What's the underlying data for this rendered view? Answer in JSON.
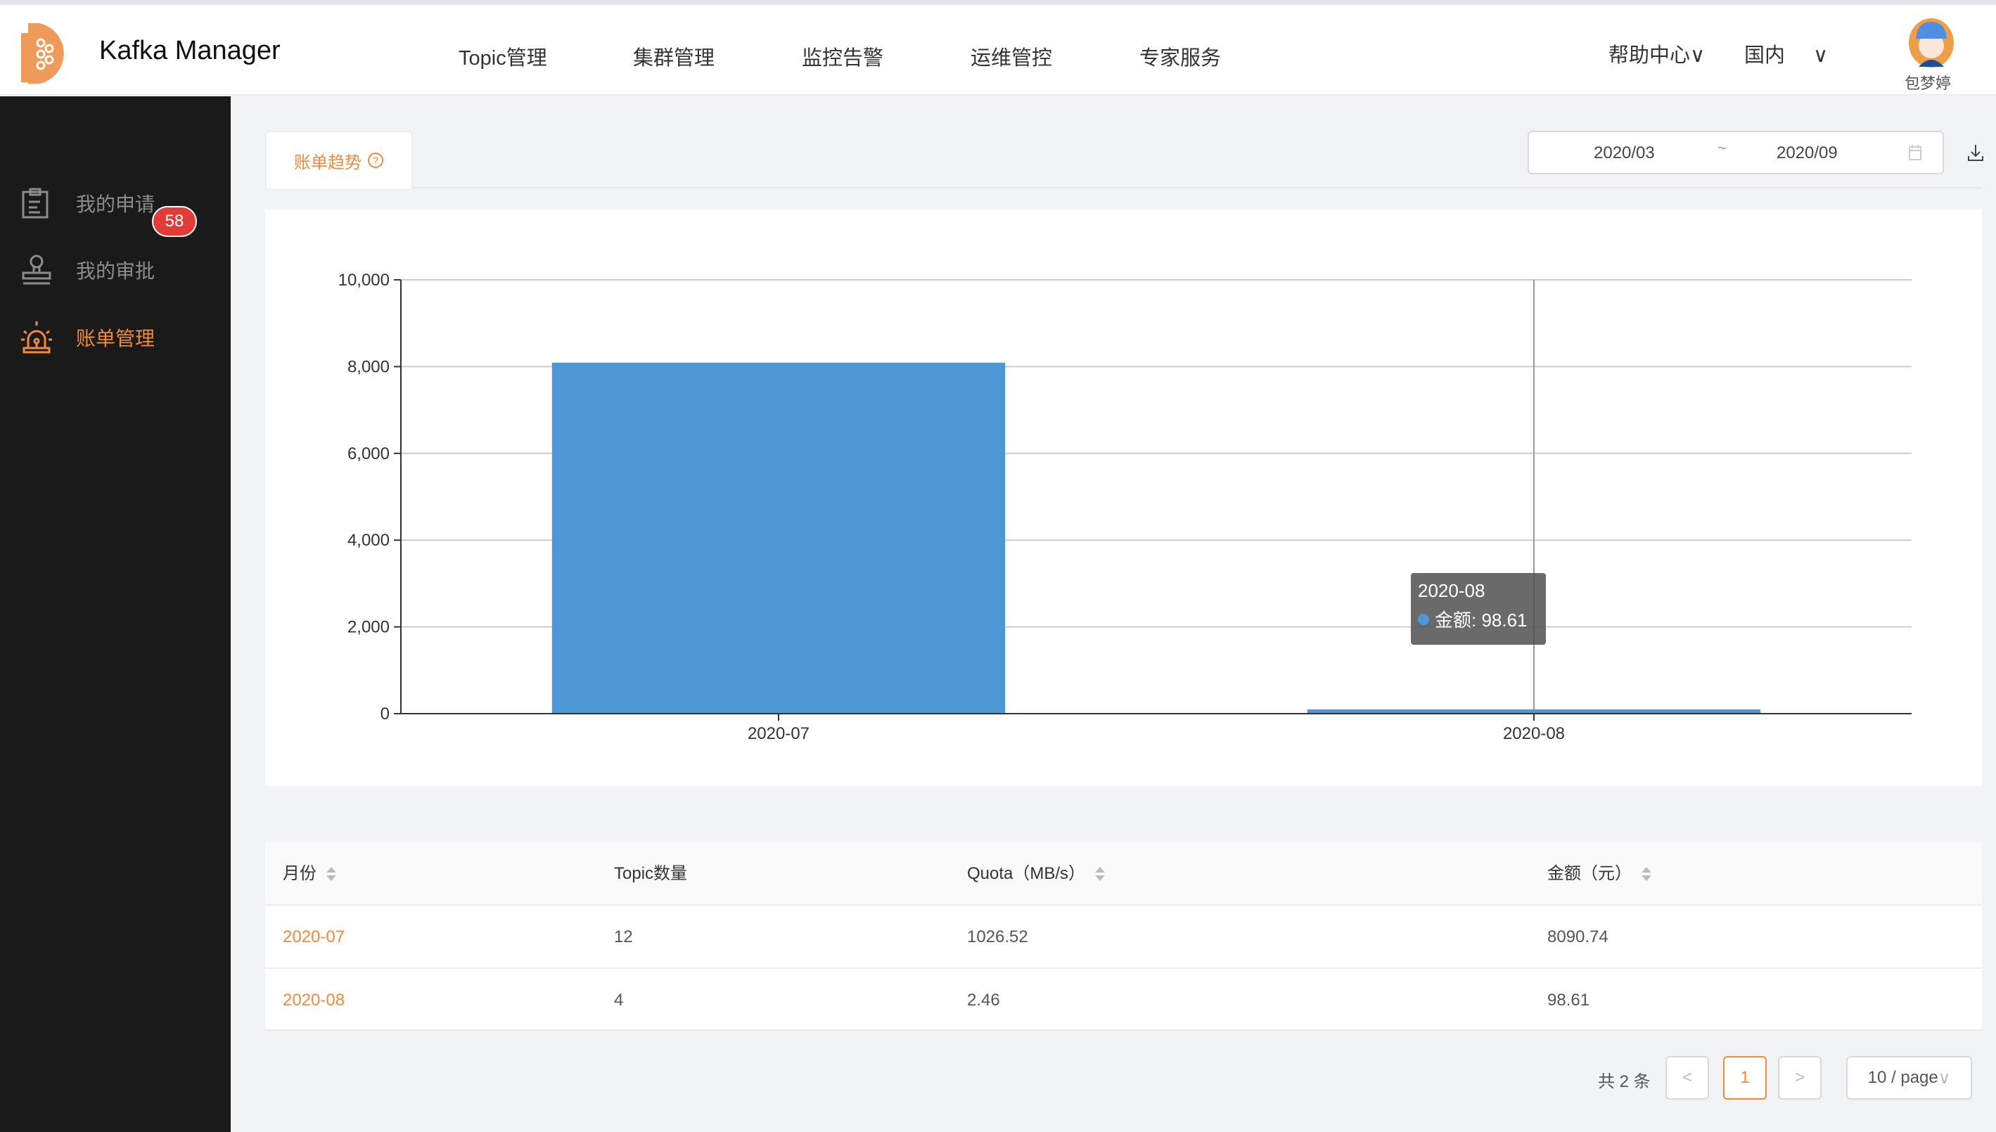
{
  "header": {
    "app_title": "Kafka Manager",
    "nav": [
      "Topic管理",
      "集群管理",
      "监控告警",
      "运维管控",
      "专家服务"
    ],
    "help": "帮助中心",
    "region": "国内",
    "user_name": "包梦婷"
  },
  "sidebar": {
    "items": [
      {
        "label": "我的申请",
        "icon": "clipboard-icon"
      },
      {
        "label": "我的审批",
        "icon": "stamp-icon",
        "badge": "58"
      },
      {
        "label": "账单管理",
        "icon": "alarm-icon",
        "active": true
      }
    ]
  },
  "main": {
    "tab_label": "账单趋势",
    "date_start": "2020/03",
    "date_sep": "~",
    "date_end": "2020/09",
    "tooltip": {
      "title": "2020-08",
      "label": "金额: 98.61"
    }
  },
  "chart_data": {
    "type": "bar",
    "categories": [
      "2020-07",
      "2020-08"
    ],
    "series": [
      {
        "name": "金额",
        "values": [
          8090.74,
          98.61
        ]
      }
    ],
    "ylim": [
      0,
      10000
    ],
    "yticks": [
      "0",
      "2,000",
      "4,000",
      "6,000",
      "8,000",
      "10,000"
    ],
    "grid": true,
    "color": "#4e97d6"
  },
  "table": {
    "columns": [
      "月份",
      "Topic数量",
      "Quota（MB/s）",
      "金额（元）"
    ],
    "rows": [
      [
        "2020-07",
        "12",
        "1026.52",
        "8090.74"
      ],
      [
        "2020-08",
        "4",
        "2.46",
        "98.61"
      ]
    ]
  },
  "pagination": {
    "total": "共 2 条",
    "prev": "<",
    "page": "1",
    "next": ">",
    "page_size": "10 / page"
  },
  "colors": {
    "accent": "#f08a3c",
    "sidebar_bg": "#1a1a1a",
    "badge": "#e23c39"
  }
}
